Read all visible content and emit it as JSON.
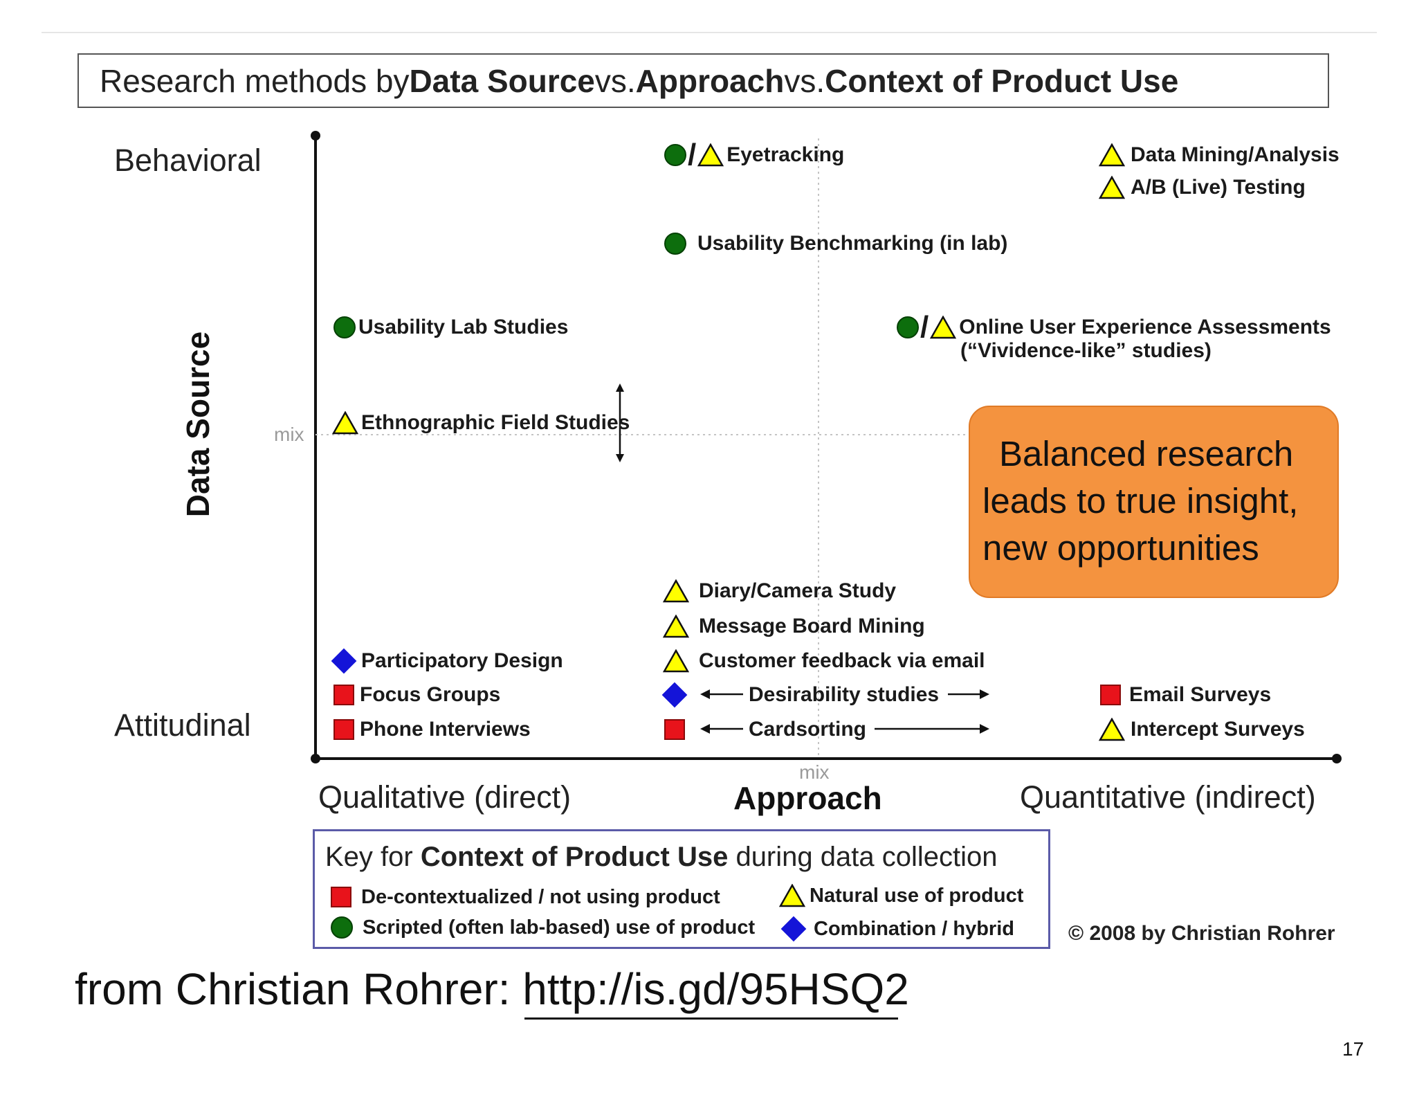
{
  "title": {
    "t1": "Research methods by ",
    "t2": "Data Source",
    "t3": " vs. ",
    "t4": "Approach",
    "t5": " vs. ",
    "t6": "Context of Product Use"
  },
  "y_axis": {
    "title": "Data Source",
    "top_label": "Behavioral",
    "bottom_label": "Attitudinal",
    "mid_label": "mix"
  },
  "x_axis": {
    "title": "Approach",
    "left_label": "Qualitative (direct)",
    "right_label": "Quantitative (indirect)",
    "mid_label": "mix"
  },
  "methods": {
    "eyetracking": "Eyetracking",
    "data_mining": "Data Mining/Analysis",
    "ab_testing": "A/B (Live) Testing",
    "benchmarking": "Usability Benchmarking (in lab)",
    "lab_studies": "Usability Lab Studies",
    "online_ux_1": "Online User Experience Assessments",
    "online_ux_2": "(“Vividence-like” studies)",
    "ethnographic": "Ethnographic Field Studies",
    "diary": "Diary/Camera Study",
    "message_board": "Message Board Mining",
    "customer_feedback": "Customer feedback via email",
    "participatory": "Participatory Design",
    "desirability": "Desirability studies",
    "email_surveys": "Email Surveys",
    "focus_groups": "Focus Groups",
    "cardsorting": "Cardsorting",
    "intercept_surveys": "Intercept Surveys",
    "phone_interviews": "Phone Interviews"
  },
  "callout": {
    "line1": "Balanced research",
    "line2": "leads to true insight,",
    "line3": "new opportunities"
  },
  "key": {
    "t1": "Key for ",
    "t2": "Context of Product Use",
    "t3": " during data collection",
    "decontextualized": "De-contextualized / not using product",
    "natural": "Natural use of product",
    "scripted": "Scripted (often lab-based) use of product",
    "combination": "Combination /  hybrid"
  },
  "credit": "© 2008 by Christian Rohrer",
  "source": {
    "prefix": "from Christian Rohrer",
    "link": ": http://is.gd/95HSQ2"
  },
  "page_number": "17",
  "colors": {
    "scripted": "#0d6e0d",
    "natural": "#ffff00",
    "decontextualized": "#e8131b",
    "combination": "#1414d8",
    "callout": "#f4933f"
  }
}
